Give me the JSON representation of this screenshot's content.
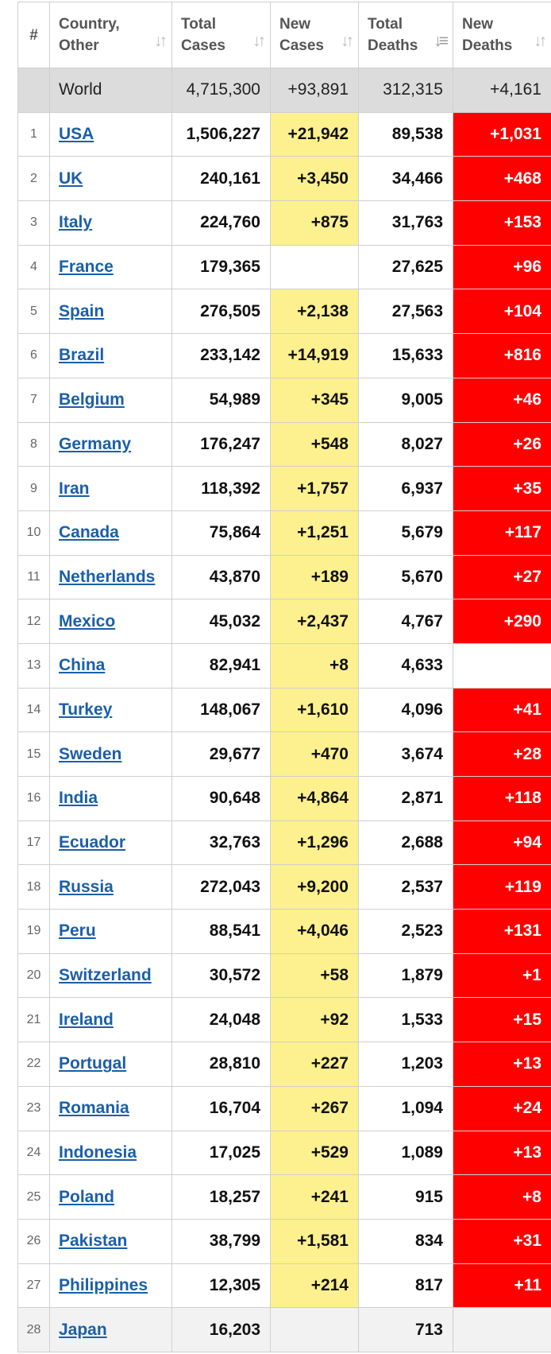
{
  "header": {
    "num": "#",
    "country": "Country,\nOther",
    "total_cases": "Total\nCases",
    "new_cases": "New\nCases",
    "total_deaths": "Total\nDeaths",
    "new_deaths": "New\nDeaths",
    "sort_icon": "sort-arrows-icon",
    "active_sort_icon": "sort-descending-icon"
  },
  "world": {
    "label": "World",
    "total_cases": "4,715,300",
    "new_cases": "+93,891",
    "total_deaths": "312,315",
    "new_deaths": "+4,161"
  },
  "colors": {
    "link": "#1a5fa8",
    "new_cases_bg": "#fdf08f",
    "new_deaths_bg": "#ff0000",
    "world_row_bg": "#dcdcdc"
  },
  "rows": [
    {
      "num": "1",
      "country": "USA",
      "total_cases": "1,506,227",
      "new_cases": "+21,942",
      "total_deaths": "89,538",
      "new_deaths": "+1,031"
    },
    {
      "num": "2",
      "country": "UK",
      "total_cases": "240,161",
      "new_cases": "+3,450",
      "total_deaths": "34,466",
      "new_deaths": "+468"
    },
    {
      "num": "3",
      "country": "Italy",
      "total_cases": "224,760",
      "new_cases": "+875",
      "total_deaths": "31,763",
      "new_deaths": "+153"
    },
    {
      "num": "4",
      "country": "France",
      "total_cases": "179,365",
      "new_cases": "",
      "total_deaths": "27,625",
      "new_deaths": "+96"
    },
    {
      "num": "5",
      "country": "Spain",
      "total_cases": "276,505",
      "new_cases": "+2,138",
      "total_deaths": "27,563",
      "new_deaths": "+104"
    },
    {
      "num": "6",
      "country": "Brazil",
      "total_cases": "233,142",
      "new_cases": "+14,919",
      "total_deaths": "15,633",
      "new_deaths": "+816"
    },
    {
      "num": "7",
      "country": "Belgium",
      "total_cases": "54,989",
      "new_cases": "+345",
      "total_deaths": "9,005",
      "new_deaths": "+46"
    },
    {
      "num": "8",
      "country": "Germany",
      "total_cases": "176,247",
      "new_cases": "+548",
      "total_deaths": "8,027",
      "new_deaths": "+26"
    },
    {
      "num": "9",
      "country": "Iran",
      "total_cases": "118,392",
      "new_cases": "+1,757",
      "total_deaths": "6,937",
      "new_deaths": "+35"
    },
    {
      "num": "10",
      "country": "Canada",
      "total_cases": "75,864",
      "new_cases": "+1,251",
      "total_deaths": "5,679",
      "new_deaths": "+117"
    },
    {
      "num": "11",
      "country": "Netherlands",
      "total_cases": "43,870",
      "new_cases": "+189",
      "total_deaths": "5,670",
      "new_deaths": "+27"
    },
    {
      "num": "12",
      "country": "Mexico",
      "total_cases": "45,032",
      "new_cases": "+2,437",
      "total_deaths": "4,767",
      "new_deaths": "+290"
    },
    {
      "num": "13",
      "country": "China",
      "total_cases": "82,941",
      "new_cases": "+8",
      "total_deaths": "4,633",
      "new_deaths": ""
    },
    {
      "num": "14",
      "country": "Turkey",
      "total_cases": "148,067",
      "new_cases": "+1,610",
      "total_deaths": "4,096",
      "new_deaths": "+41"
    },
    {
      "num": "15",
      "country": "Sweden",
      "total_cases": "29,677",
      "new_cases": "+470",
      "total_deaths": "3,674",
      "new_deaths": "+28"
    },
    {
      "num": "16",
      "country": "India",
      "total_cases": "90,648",
      "new_cases": "+4,864",
      "total_deaths": "2,871",
      "new_deaths": "+118"
    },
    {
      "num": "17",
      "country": "Ecuador",
      "total_cases": "32,763",
      "new_cases": "+1,296",
      "total_deaths": "2,688",
      "new_deaths": "+94"
    },
    {
      "num": "18",
      "country": "Russia",
      "total_cases": "272,043",
      "new_cases": "+9,200",
      "total_deaths": "2,537",
      "new_deaths": "+119"
    },
    {
      "num": "19",
      "country": "Peru",
      "total_cases": "88,541",
      "new_cases": "+4,046",
      "total_deaths": "2,523",
      "new_deaths": "+131"
    },
    {
      "num": "20",
      "country": "Switzerland",
      "total_cases": "30,572",
      "new_cases": "+58",
      "total_deaths": "1,879",
      "new_deaths": "+1"
    },
    {
      "num": "21",
      "country": "Ireland",
      "total_cases": "24,048",
      "new_cases": "+92",
      "total_deaths": "1,533",
      "new_deaths": "+15"
    },
    {
      "num": "22",
      "country": "Portugal",
      "total_cases": "28,810",
      "new_cases": "+227",
      "total_deaths": "1,203",
      "new_deaths": "+13"
    },
    {
      "num": "23",
      "country": "Romania",
      "total_cases": "16,704",
      "new_cases": "+267",
      "total_deaths": "1,094",
      "new_deaths": "+24"
    },
    {
      "num": "24",
      "country": "Indonesia",
      "total_cases": "17,025",
      "new_cases": "+529",
      "total_deaths": "1,089",
      "new_deaths": "+13"
    },
    {
      "num": "25",
      "country": "Poland",
      "total_cases": "18,257",
      "new_cases": "+241",
      "total_deaths": "915",
      "new_deaths": "+8"
    },
    {
      "num": "26",
      "country": "Pakistan",
      "total_cases": "38,799",
      "new_cases": "+1,581",
      "total_deaths": "834",
      "new_deaths": "+31"
    },
    {
      "num": "27",
      "country": "Philippines",
      "total_cases": "12,305",
      "new_cases": "+214",
      "total_deaths": "817",
      "new_deaths": "+11"
    },
    {
      "num": "28",
      "country": "Japan",
      "total_cases": "16,203",
      "new_cases": "",
      "total_deaths": "713",
      "new_deaths": ""
    }
  ]
}
